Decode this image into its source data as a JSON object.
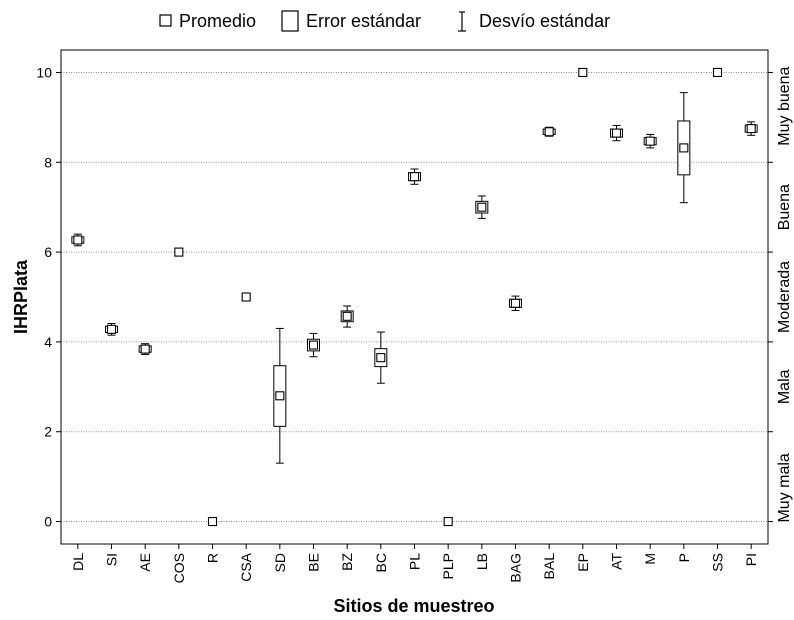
{
  "chart_data": {
    "type": "box",
    "xlabel": "Sitios de muestreo",
    "ylabel": "IHRPlata",
    "ylim": [
      -0.5,
      10.5
    ],
    "yticks": [
      0,
      2,
      4,
      6,
      8,
      10
    ],
    "grid": "horizontal-dotted",
    "legend": {
      "placement": "top",
      "entries": [
        {
          "label": "Promedio",
          "icon": "small-square-marker"
        },
        {
          "label": "Error estándar",
          "icon": "box"
        },
        {
          "label": "Desvío estándar",
          "icon": "whisker"
        }
      ]
    },
    "categories": [
      "DL",
      "SI",
      "AE",
      "COS",
      "R",
      "CSA",
      "SD",
      "BE",
      "BZ",
      "BC",
      "PL",
      "PLP",
      "LB",
      "BAG",
      "BAL",
      "EP",
      "AT",
      "M",
      "P",
      "SS",
      "PI"
    ],
    "mean": [
      6.27,
      4.28,
      3.84,
      6.0,
      0.0,
      5.0,
      2.8,
      3.93,
      4.57,
      3.65,
      7.68,
      0.0,
      7.0,
      4.86,
      8.68,
      10.0,
      8.65,
      8.47,
      8.32,
      10.0,
      8.75
    ],
    "se_low": [
      6.2,
      4.21,
      3.77,
      6.0,
      0.0,
      5.0,
      2.12,
      3.8,
      4.45,
      3.45,
      7.59,
      0.0,
      6.87,
      4.77,
      8.62,
      10.0,
      8.56,
      8.39,
      7.72,
      10.0,
      8.67
    ],
    "se_high": [
      6.34,
      4.35,
      3.91,
      6.0,
      0.0,
      5.0,
      3.47,
      4.06,
      4.69,
      3.85,
      7.77,
      0.0,
      7.13,
      4.95,
      8.74,
      10.0,
      8.74,
      8.55,
      8.92,
      10.0,
      8.83
    ],
    "sd_low": [
      6.14,
      4.15,
      3.72,
      6.0,
      0.0,
      5.0,
      1.3,
      3.67,
      4.33,
      3.08,
      7.51,
      0.0,
      6.75,
      4.7,
      8.58,
      10.0,
      8.48,
      8.32,
      7.1,
      10.0,
      8.6
    ],
    "sd_high": [
      6.4,
      4.41,
      3.96,
      6.0,
      0.0,
      5.0,
      4.3,
      4.19,
      4.8,
      4.22,
      7.85,
      0.0,
      7.25,
      5.02,
      8.78,
      10.0,
      8.82,
      8.62,
      9.55,
      10.0,
      8.9
    ],
    "quality_bands": [
      {
        "label": "Muy mala",
        "from": -0.5,
        "to": 2
      },
      {
        "label": "Mala",
        "from": 2,
        "to": 4
      },
      {
        "label": "Moderada",
        "from": 4,
        "to": 6
      },
      {
        "label": "Buena",
        "from": 6,
        "to": 8
      },
      {
        "label": "Muy buena",
        "from": 8,
        "to": 10.5
      }
    ]
  }
}
